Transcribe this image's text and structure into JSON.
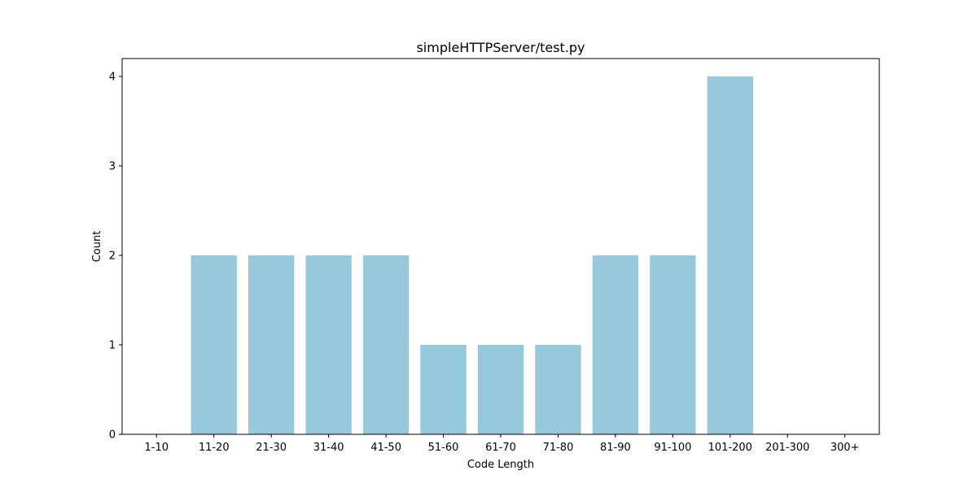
{
  "chart_data": {
    "type": "bar",
    "title": "simpleHTTPServer/test.py",
    "xlabel": "Code Length",
    "ylabel": "Count",
    "categories": [
      "1-10",
      "11-20",
      "21-30",
      "31-40",
      "41-50",
      "51-60",
      "61-70",
      "71-80",
      "81-90",
      "91-100",
      "101-200",
      "201-300",
      "300+"
    ],
    "values": [
      0,
      2,
      2,
      2,
      2,
      1,
      1,
      1,
      2,
      2,
      4,
      0,
      0
    ],
    "ylim": [
      0,
      4.2
    ],
    "yticks": [
      0,
      1,
      2,
      3,
      4
    ],
    "grid": false,
    "bar_color": "#96c9dc"
  }
}
